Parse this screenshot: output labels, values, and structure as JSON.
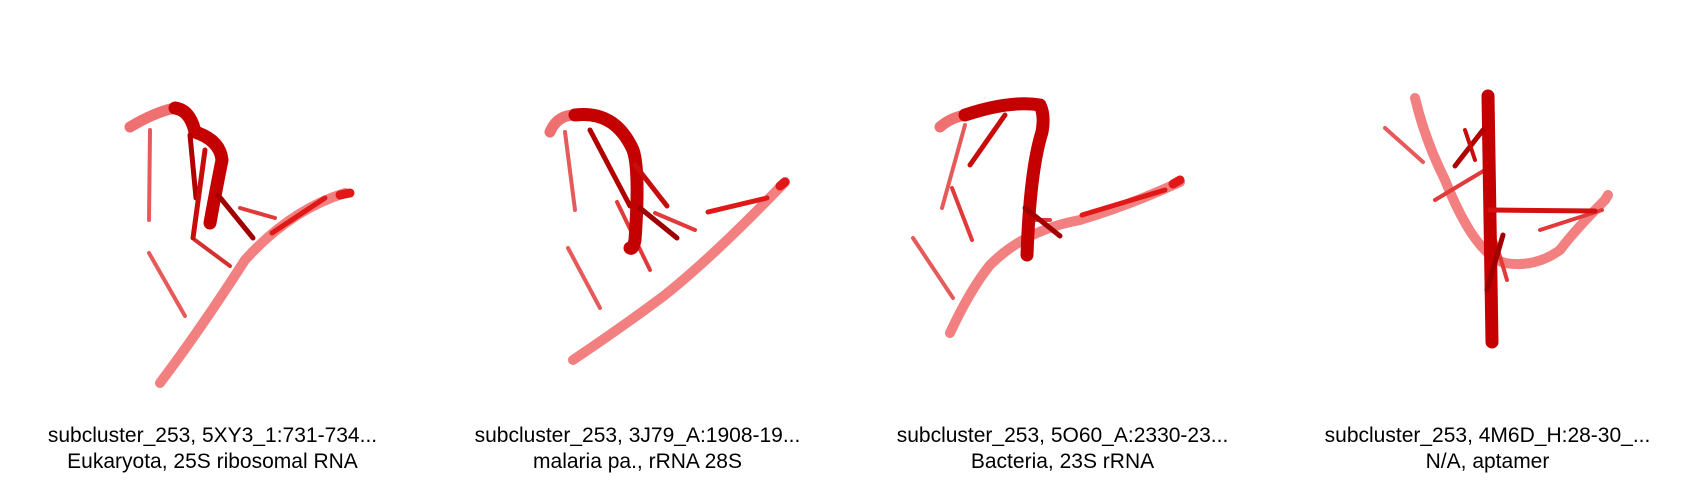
{
  "panels": [
    {
      "title": "subcluster_253, 5XY3_1:731-734...",
      "subtitle": "Eukaryota, 25S ribosomal RNA"
    },
    {
      "title": "subcluster_253, 3J79_A:1908-19...",
      "subtitle": "malaria pa., rRNA 28S"
    },
    {
      "title": "subcluster_253, 5O60_A:2330-23...",
      "subtitle": "Bacteria, 23S rRNA"
    },
    {
      "title": "subcluster_253, 4M6D_H:28-30_...",
      "subtitle": "N/A, aptamer"
    }
  ],
  "colors": {
    "backbone_dark": "#c40000",
    "backbone_mid": "#e01818",
    "backbone_light": "#f07070",
    "base_dark": "#a00000",
    "base_light": "#e65a5a"
  }
}
